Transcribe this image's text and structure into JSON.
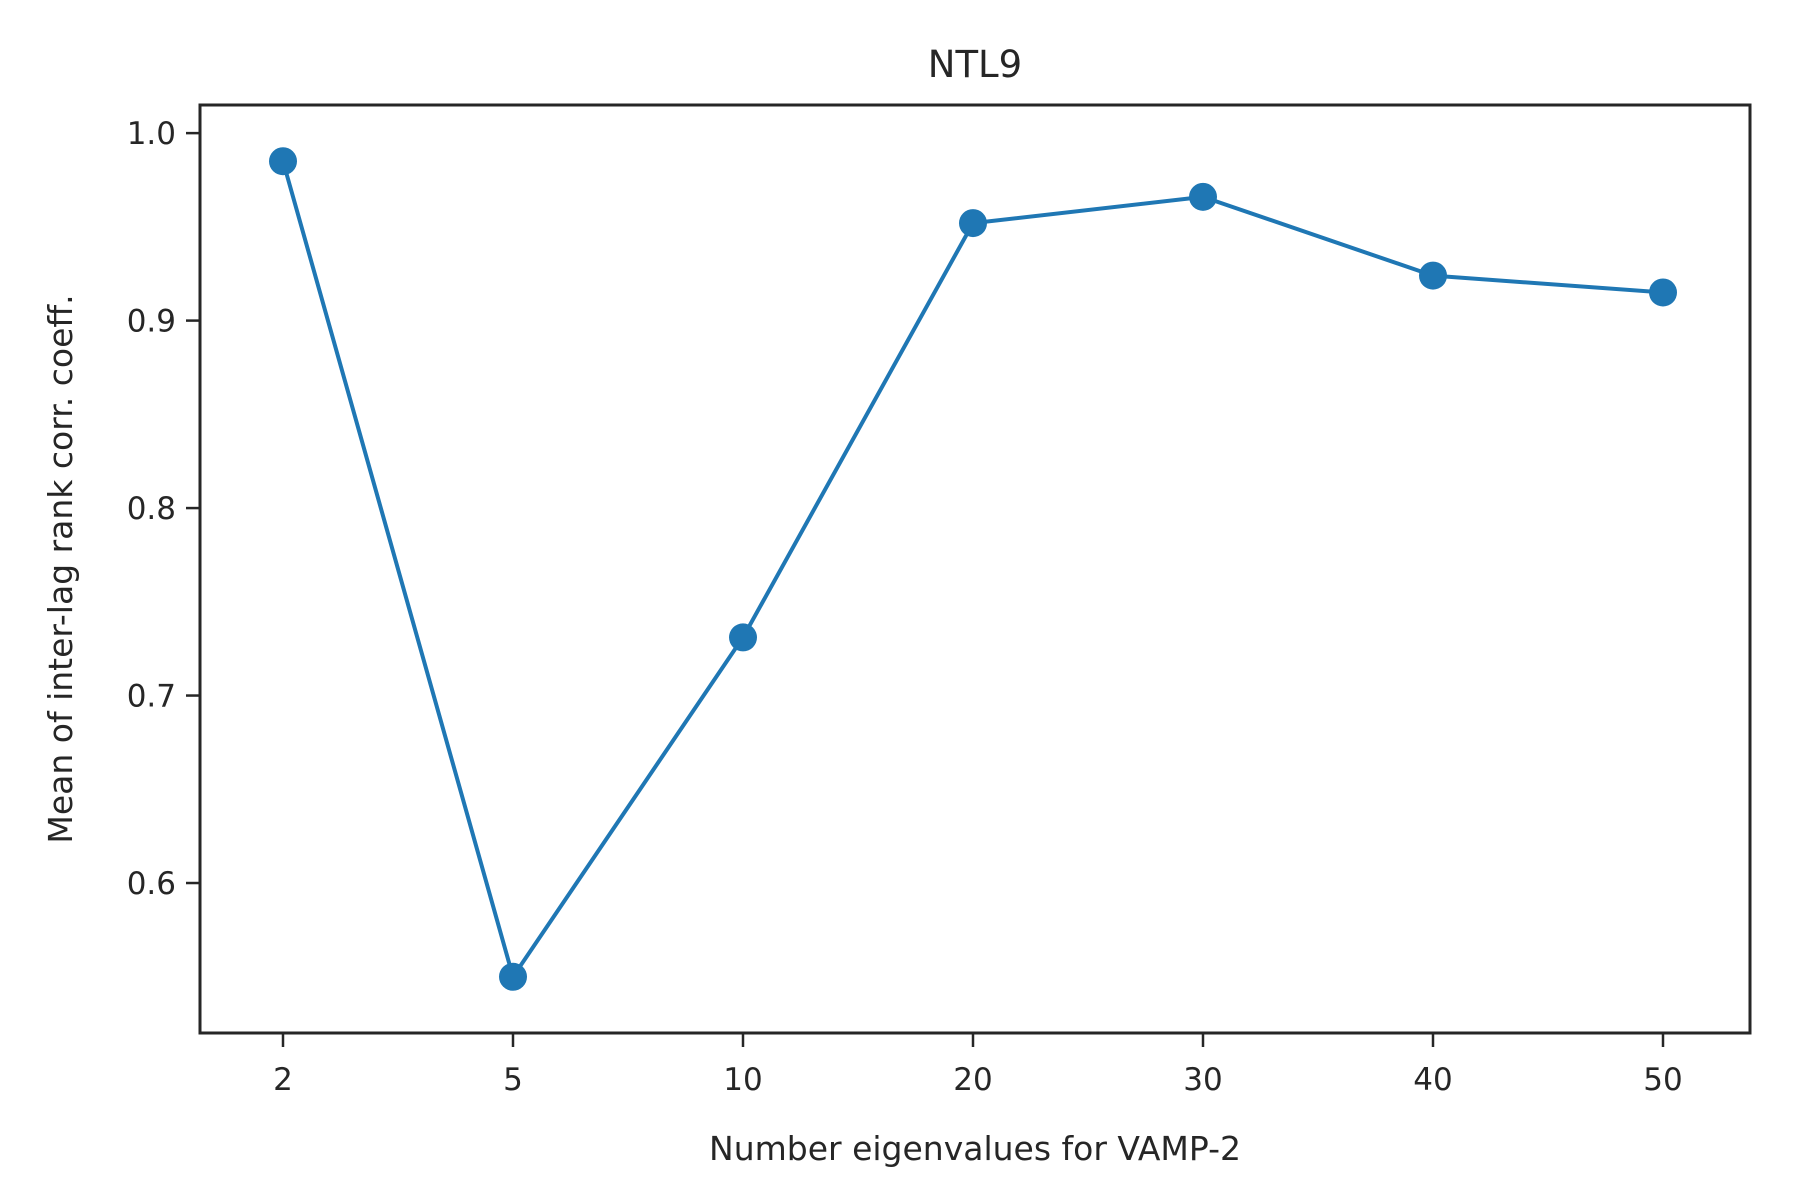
{
  "chart_data": {
    "type": "line",
    "title": "NTL9",
    "xlabel": "Number eigenvalues for VAMP-2",
    "ylabel": "Mean of inter-lag rank corr. coeff.",
    "categories": [
      "2",
      "5",
      "10",
      "20",
      "30",
      "40",
      "50"
    ],
    "series": [
      {
        "values": [
          0.985,
          0.55,
          0.731,
          0.952,
          0.966,
          0.924,
          0.915
        ],
        "color": "#1f77b4",
        "marker": "circle"
      }
    ],
    "ylim": [
      0.52,
      1.015
    ],
    "yticks": [
      "0.6",
      "0.7",
      "0.8",
      "0.9",
      "1.0"
    ],
    "grid": false,
    "legend": "none"
  }
}
